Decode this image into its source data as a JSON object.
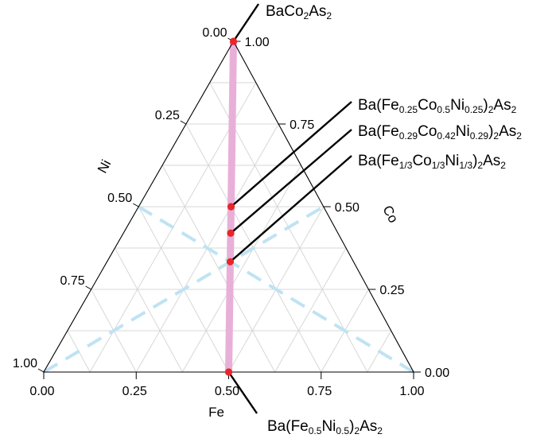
{
  "chart_data": {
    "type": "scatter",
    "subtype": "ternary",
    "axes": {
      "Fe": {
        "title": "Fe",
        "ticks": [
          "0.00",
          "0.25",
          "0.50",
          "0.75",
          "1.00"
        ],
        "range": [
          0,
          1
        ]
      },
      "Ni": {
        "title": "Ni",
        "ticks": [
          "0.00",
          "0.25",
          "0.50",
          "0.75",
          "1.00"
        ],
        "range": [
          0,
          1
        ]
      },
      "Co": {
        "title": "Co",
        "ticks": [
          "0.00",
          "0.25",
          "0.50",
          "0.75",
          "1.00"
        ],
        "range": [
          0,
          1
        ]
      }
    },
    "grid": true,
    "points": [
      {
        "fe": 0,
        "co": 1,
        "ni": 0,
        "label": "BaCo₂As₂",
        "label_parts": [
          [
            "BaCo",
            ""
          ],
          [
            "2",
            "sub"
          ],
          [
            "As",
            ""
          ],
          [
            "2",
            "sub"
          ]
        ]
      },
      {
        "fe": 0.25,
        "co": 0.5,
        "ni": 0.25,
        "label": "Ba(Fe0.25Co0.5Ni0.25)2As2",
        "label_parts": [
          [
            "Ba(Fe",
            ""
          ],
          [
            "0.25",
            "sub"
          ],
          [
            "Co",
            ""
          ],
          [
            "0.5",
            "sub"
          ],
          [
            "Ni",
            ""
          ],
          [
            "0.25",
            "sub"
          ],
          [
            ")",
            ""
          ],
          [
            "2",
            "sub"
          ],
          [
            "As",
            ""
          ],
          [
            "2",
            "sub"
          ]
        ]
      },
      {
        "fe": 0.29,
        "co": 0.42,
        "ni": 0.29,
        "label": "Ba(Fe0.29Co0.42Ni0.29)2As2",
        "label_parts": [
          [
            "Ba(Fe",
            ""
          ],
          [
            "0.29",
            "sub"
          ],
          [
            "Co",
            ""
          ],
          [
            "0.42",
            "sub"
          ],
          [
            "Ni",
            ""
          ],
          [
            "0.29",
            "sub"
          ],
          [
            ")",
            ""
          ],
          [
            "2",
            "sub"
          ],
          [
            "As",
            ""
          ],
          [
            "2",
            "sub"
          ]
        ]
      },
      {
        "fe": 0.3333,
        "co": 0.3333,
        "ni": 0.3333,
        "label": "Ba(Fe1/3Co1/3Ni1/3)2As2",
        "label_parts": [
          [
            "Ba(Fe",
            ""
          ],
          [
            "1/3",
            "sub"
          ],
          [
            "Co",
            ""
          ],
          [
            "1/3",
            "sub"
          ],
          [
            "Ni",
            ""
          ],
          [
            "1/3",
            "sub"
          ],
          [
            ")",
            ""
          ],
          [
            "2",
            "sub"
          ],
          [
            "As",
            ""
          ],
          [
            "2",
            "sub"
          ]
        ]
      },
      {
        "fe": 0.5,
        "co": 0,
        "ni": 0.5,
        "label": "Ba(Fe0.5Ni0.5)2As2",
        "label_parts": [
          [
            "Ba(Fe",
            ""
          ],
          [
            "0.5",
            "sub"
          ],
          [
            "Ni",
            ""
          ],
          [
            "0.5",
            "sub"
          ],
          [
            ")",
            ""
          ],
          [
            "2",
            "sub"
          ],
          [
            "As",
            ""
          ],
          [
            "2",
            "sub"
          ]
        ]
      }
    ],
    "lines": [
      {
        "kind": "highlight",
        "color": "#e8b0d8",
        "from": {
          "fe": 0.5,
          "co": 0,
          "ni": 0.5
        },
        "to": {
          "fe": 0,
          "co": 1,
          "ni": 0
        }
      },
      {
        "kind": "dashed",
        "color": "#bfe3f3",
        "from": {
          "fe": 0,
          "co": 0,
          "ni": 1
        },
        "to": {
          "fe": 0.5,
          "co": 0.5,
          "ni": 0
        }
      },
      {
        "kind": "dashed",
        "color": "#bfe3f3",
        "from": {
          "fe": 1,
          "co": 0,
          "ni": 0
        },
        "to": {
          "fe": 0,
          "co": 0.5,
          "ni": 0.5
        }
      }
    ],
    "point_color": "#e8262a"
  }
}
